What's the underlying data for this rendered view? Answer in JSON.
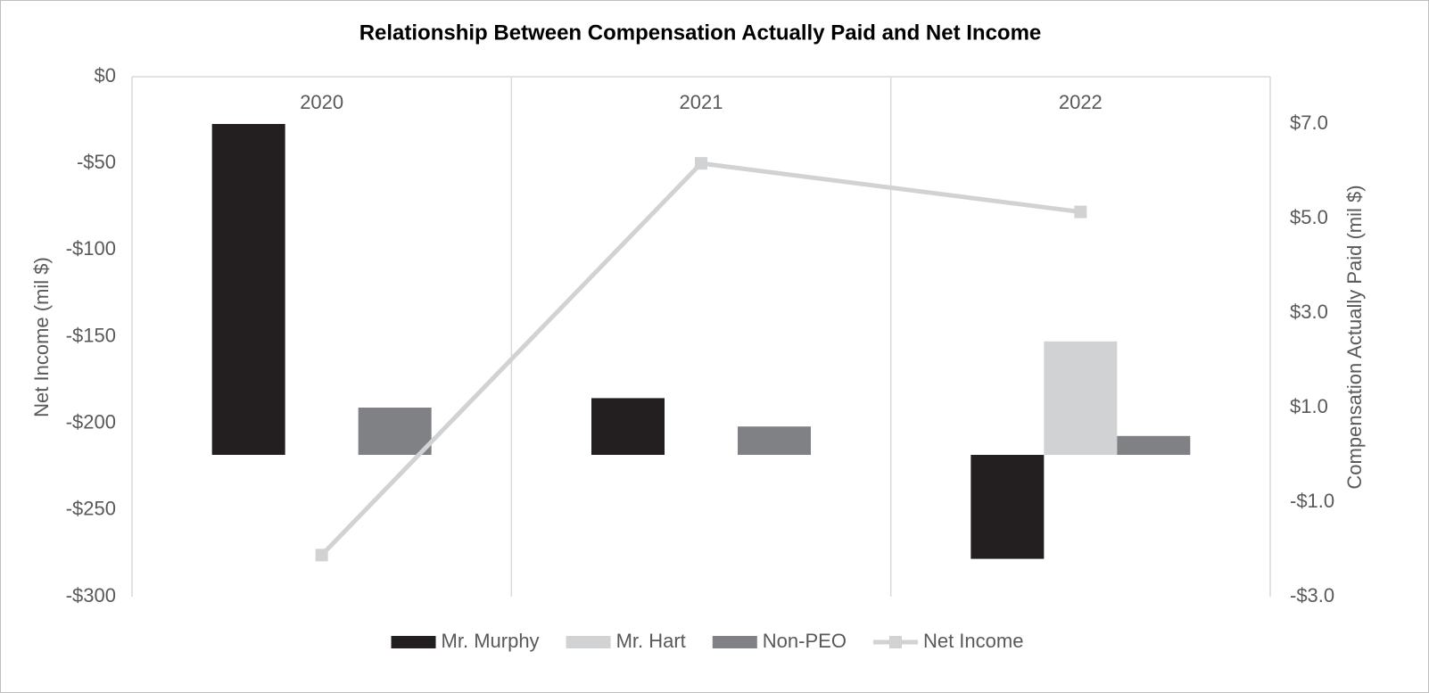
{
  "chart_data": {
    "type": "bar",
    "title": "Relationship Between Compensation Actually Paid and Net Income",
    "categories": [
      "2020",
      "2021",
      "2022"
    ],
    "series": [
      {
        "name": "Mr. Murphy",
        "color": "#231f20",
        "axis": "y2",
        "values": [
          7.0,
          1.2,
          -2.2
        ]
      },
      {
        "name": "Mr. Hart",
        "color": "#d1d2d3",
        "axis": "y2",
        "values": [
          null,
          null,
          2.4
        ]
      },
      {
        "name": "Non-PEO",
        "color": "#808184",
        "axis": "y2",
        "values": [
          1.0,
          0.6,
          0.4
        ]
      },
      {
        "name": "Net Income",
        "color": "#d1d2d3",
        "axis": "y",
        "type": "line",
        "values": [
          -276,
          -50,
          -78
        ]
      }
    ],
    "ylabel": "Net Income (mil $)",
    "y2label": "Compensation Actually Paid (mil $)",
    "ylim": [
      -300,
      0
    ],
    "yticks": [
      {
        "value": 0,
        "label": "$0"
      },
      {
        "value": -50,
        "label": "-$50"
      },
      {
        "value": -100,
        "label": "-$100"
      },
      {
        "value": -150,
        "label": "-$150"
      },
      {
        "value": -200,
        "label": "-$200"
      },
      {
        "value": -250,
        "label": "-$250"
      },
      {
        "value": -300,
        "label": "-$300"
      }
    ],
    "y2lim": [
      -3,
      8
    ],
    "y2ticks": [
      {
        "value": 7,
        "label": "$7.0"
      },
      {
        "value": 5,
        "label": "$5.0"
      },
      {
        "value": 3,
        "label": "$3.0"
      },
      {
        "value": 1,
        "label": "$1.0"
      },
      {
        "value": -1,
        "label": "-$1.0"
      },
      {
        "value": -3,
        "label": "-$3.0"
      }
    ],
    "legend": "bottom"
  }
}
